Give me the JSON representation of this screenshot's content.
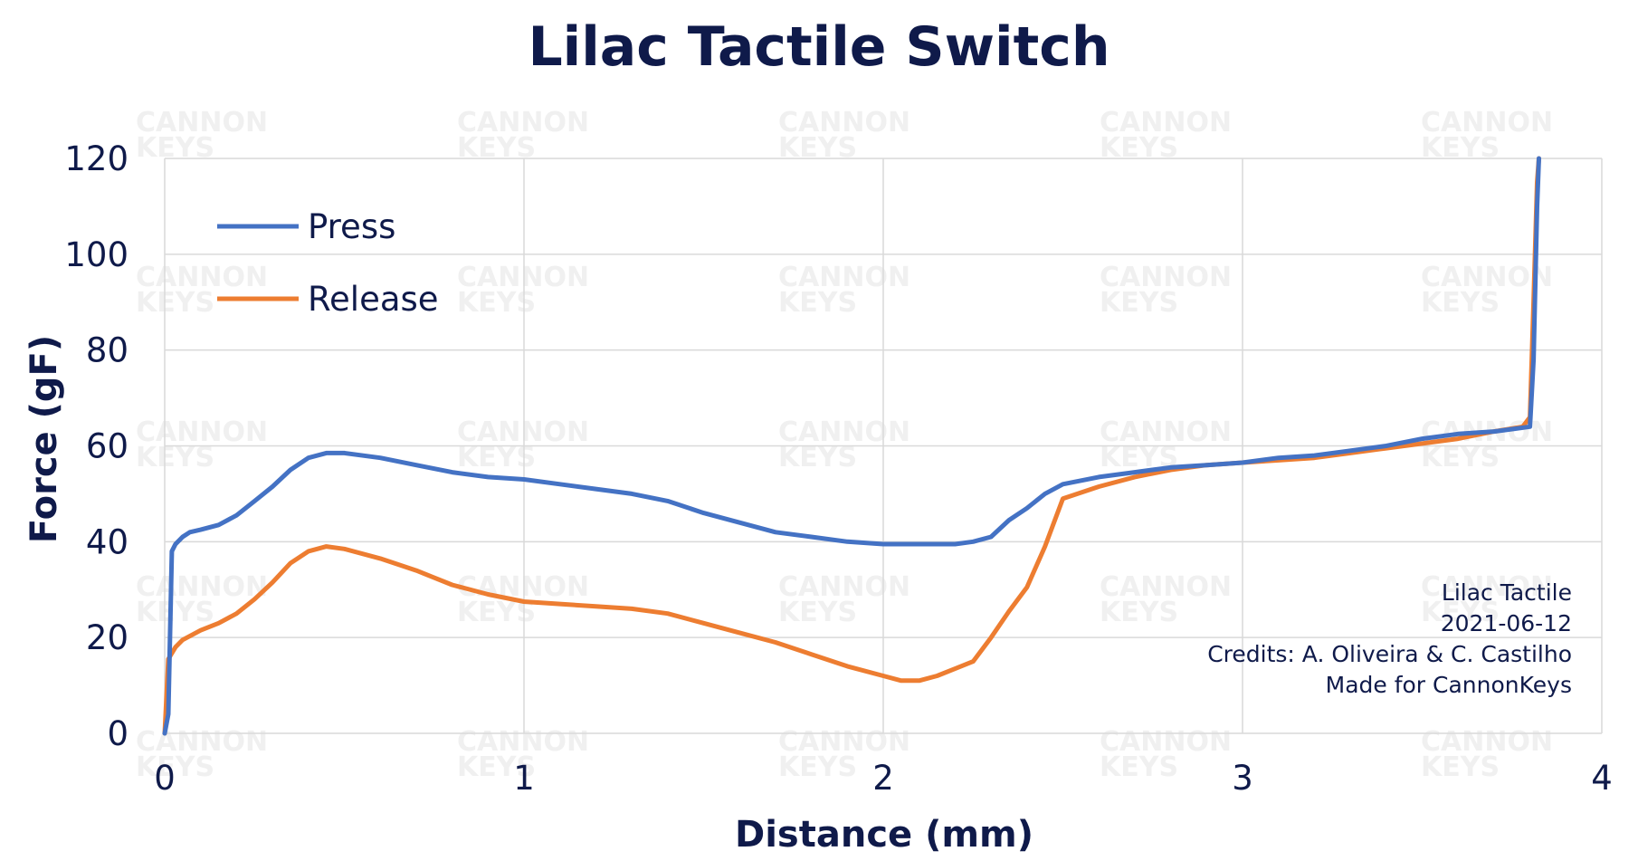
{
  "chart_data": {
    "type": "line",
    "title": "Lilac Tactile Switch",
    "xlabel": "Distance (mm)",
    "ylabel": "Force (gF)",
    "xlim": [
      0,
      4
    ],
    "ylim": [
      0,
      120
    ],
    "x_ticks": [
      "0",
      "1",
      "2",
      "3",
      "4"
    ],
    "y_ticks": [
      "0",
      "20",
      "40",
      "60",
      "80",
      "100",
      "120"
    ],
    "grid": true,
    "legend_position": "top-left",
    "series": [
      {
        "name": "Press",
        "color": "#4472c4",
        "x": [
          0.0,
          0.01,
          0.02,
          0.03,
          0.05,
          0.07,
          0.1,
          0.15,
          0.2,
          0.25,
          0.3,
          0.35,
          0.4,
          0.45,
          0.5,
          0.6,
          0.7,
          0.8,
          0.9,
          1.0,
          1.1,
          1.2,
          1.3,
          1.4,
          1.5,
          1.6,
          1.7,
          1.8,
          1.9,
          2.0,
          2.1,
          2.2,
          2.25,
          2.3,
          2.35,
          2.4,
          2.45,
          2.5,
          2.6,
          2.7,
          2.8,
          2.9,
          3.0,
          3.1,
          3.2,
          3.3,
          3.4,
          3.5,
          3.6,
          3.7,
          3.75,
          3.8,
          3.81,
          3.82,
          3.825
        ],
        "y": [
          0,
          4,
          38,
          39.5,
          41,
          42,
          42.5,
          43.5,
          45.5,
          48.5,
          51.5,
          55,
          57.5,
          58.5,
          58.5,
          57.5,
          56,
          54.5,
          53.5,
          53,
          52,
          51,
          50,
          48.5,
          46,
          44,
          42,
          41,
          40,
          39.5,
          39.5,
          39.5,
          40,
          41,
          44.5,
          47,
          50,
          52,
          53.5,
          54.5,
          55.5,
          56,
          56.5,
          57.5,
          58,
          59,
          60,
          61.5,
          62.5,
          63,
          63.5,
          64,
          78,
          110,
          120
        ]
      },
      {
        "name": "Release",
        "color": "#ed7d31",
        "x": [
          0.0,
          0.01,
          0.03,
          0.05,
          0.1,
          0.15,
          0.2,
          0.25,
          0.3,
          0.35,
          0.4,
          0.45,
          0.5,
          0.6,
          0.7,
          0.8,
          0.9,
          1.0,
          1.1,
          1.2,
          1.3,
          1.4,
          1.5,
          1.6,
          1.7,
          1.8,
          1.9,
          2.0,
          2.05,
          2.1,
          2.15,
          2.2,
          2.25,
          2.3,
          2.35,
          2.4,
          2.45,
          2.5,
          2.6,
          2.7,
          2.8,
          2.9,
          3.0,
          3.1,
          3.2,
          3.3,
          3.4,
          3.5,
          3.6,
          3.7,
          3.78,
          3.8,
          3.81,
          3.82,
          3.825
        ],
        "y": [
          0,
          15.5,
          18,
          19.5,
          21.5,
          23,
          25,
          28,
          31.5,
          35.5,
          38,
          39,
          38.5,
          36.5,
          34,
          31,
          29,
          27.5,
          27,
          26.5,
          26,
          25,
          23,
          21,
          19,
          16.5,
          14,
          12,
          11,
          11,
          12,
          13.5,
          15,
          20,
          25.5,
          30.5,
          39,
          49,
          51.5,
          53.5,
          55,
          56,
          56.5,
          57,
          57.5,
          58.5,
          59.5,
          60.5,
          61.5,
          63,
          64,
          66,
          90,
          115,
          120
        ]
      }
    ],
    "annotations": [
      "Lilac Tactile",
      "2021-06-12",
      "Credits: A. Oliveira & C. Castilho",
      "Made for CannonKeys"
    ],
    "watermark": [
      "CANNON",
      "KEYS"
    ]
  }
}
